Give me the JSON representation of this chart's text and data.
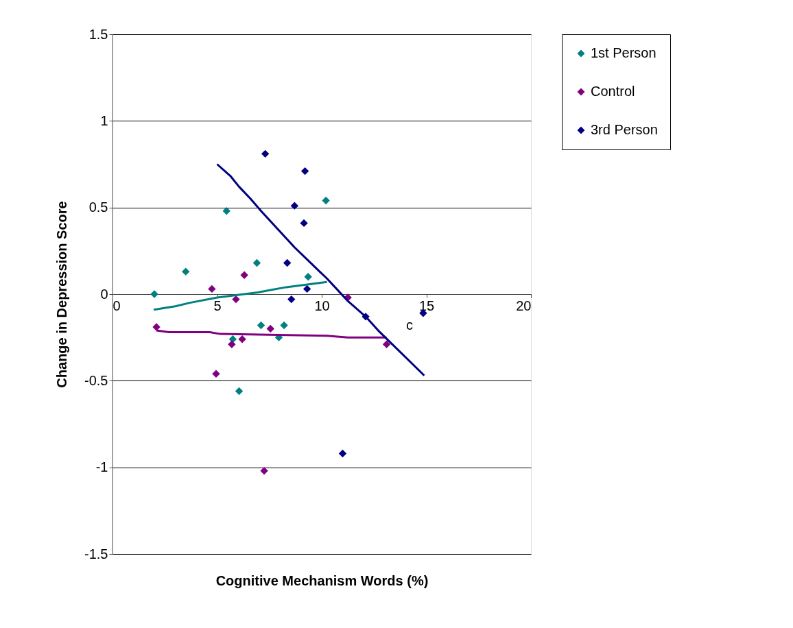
{
  "chart_data": {
    "type": "scatter",
    "xlabel": "Cognitive Mechanism Words (%)",
    "ylabel": "Change in Depression Score",
    "xlim": [
      0,
      20
    ],
    "xticks": [
      0,
      5,
      10,
      15,
      20
    ],
    "ylim": [
      -1.5,
      1.5
    ],
    "yticks": [
      -1.5,
      -1,
      -0.5,
      0,
      0.5,
      1,
      1.5
    ],
    "grid": "y",
    "legend": "right",
    "marker": "diamond",
    "annotations": [
      "c"
    ],
    "series": [
      {
        "name": "1st Person",
        "color": "#008080",
        "x": [
          2.0,
          3.5,
          5.45,
          6.9,
          9.35,
          10.2,
          7.1,
          8.2,
          7.95,
          5.75,
          6.05
        ],
        "values": [
          0.0,
          0.13,
          0.48,
          0.18,
          0.1,
          0.54,
          -0.18,
          -0.18,
          -0.25,
          -0.26,
          -0.56
        ]
      },
      {
        "name": "Control",
        "color": "#800080",
        "x": [
          2.1,
          4.75,
          5.9,
          6.3,
          5.7,
          6.2,
          7.55,
          4.95,
          7.25,
          11.25,
          13.1
        ],
        "values": [
          -0.19,
          0.03,
          -0.03,
          0.11,
          -0.29,
          -0.26,
          -0.2,
          -0.46,
          -1.02,
          -0.02,
          -0.29
        ]
      },
      {
        "name": "3rd Person",
        "color": "#000080",
        "x": [
          7.3,
          9.2,
          8.7,
          9.15,
          8.35,
          8.55,
          9.3,
          12.1,
          14.85,
          11.0
        ],
        "values": [
          0.81,
          0.71,
          0.51,
          0.41,
          0.18,
          -0.03,
          0.03,
          -0.13,
          -0.11,
          -0.92
        ]
      },
      {
        "type": "line",
        "marker": "none",
        "line_style": "solid",
        "color": "#008080",
        "x": [
          1.97,
          3.0,
          3.7,
          5.0,
          6.95,
          7.6,
          8.3,
          10.25
        ],
        "values": [
          -0.09,
          -0.07,
          -0.05,
          -0.02,
          0.01,
          0.025,
          0.04,
          0.07
        ]
      },
      {
        "type": "line",
        "marker": "none",
        "line_style": "solid",
        "color": "#800080",
        "x": [
          2.1,
          2.7,
          4.65,
          5.15,
          10.25,
          11.25,
          13.1
        ],
        "values": [
          -0.21,
          -0.22,
          -0.22,
          -0.23,
          -0.24,
          -0.25,
          -0.25
        ]
      },
      {
        "type": "line",
        "marker": "none",
        "line_style": "solid",
        "color": "#000080",
        "x": [
          5.0,
          5.65,
          6.05,
          6.6,
          7.1,
          8.7,
          9.9,
          10.25,
          11.25,
          12.1,
          12.7,
          14.9
        ],
        "values": [
          0.75,
          0.68,
          0.62,
          0.55,
          0.48,
          0.27,
          0.13,
          0.09,
          -0.04,
          -0.13,
          -0.21,
          -0.47
        ]
      }
    ]
  }
}
